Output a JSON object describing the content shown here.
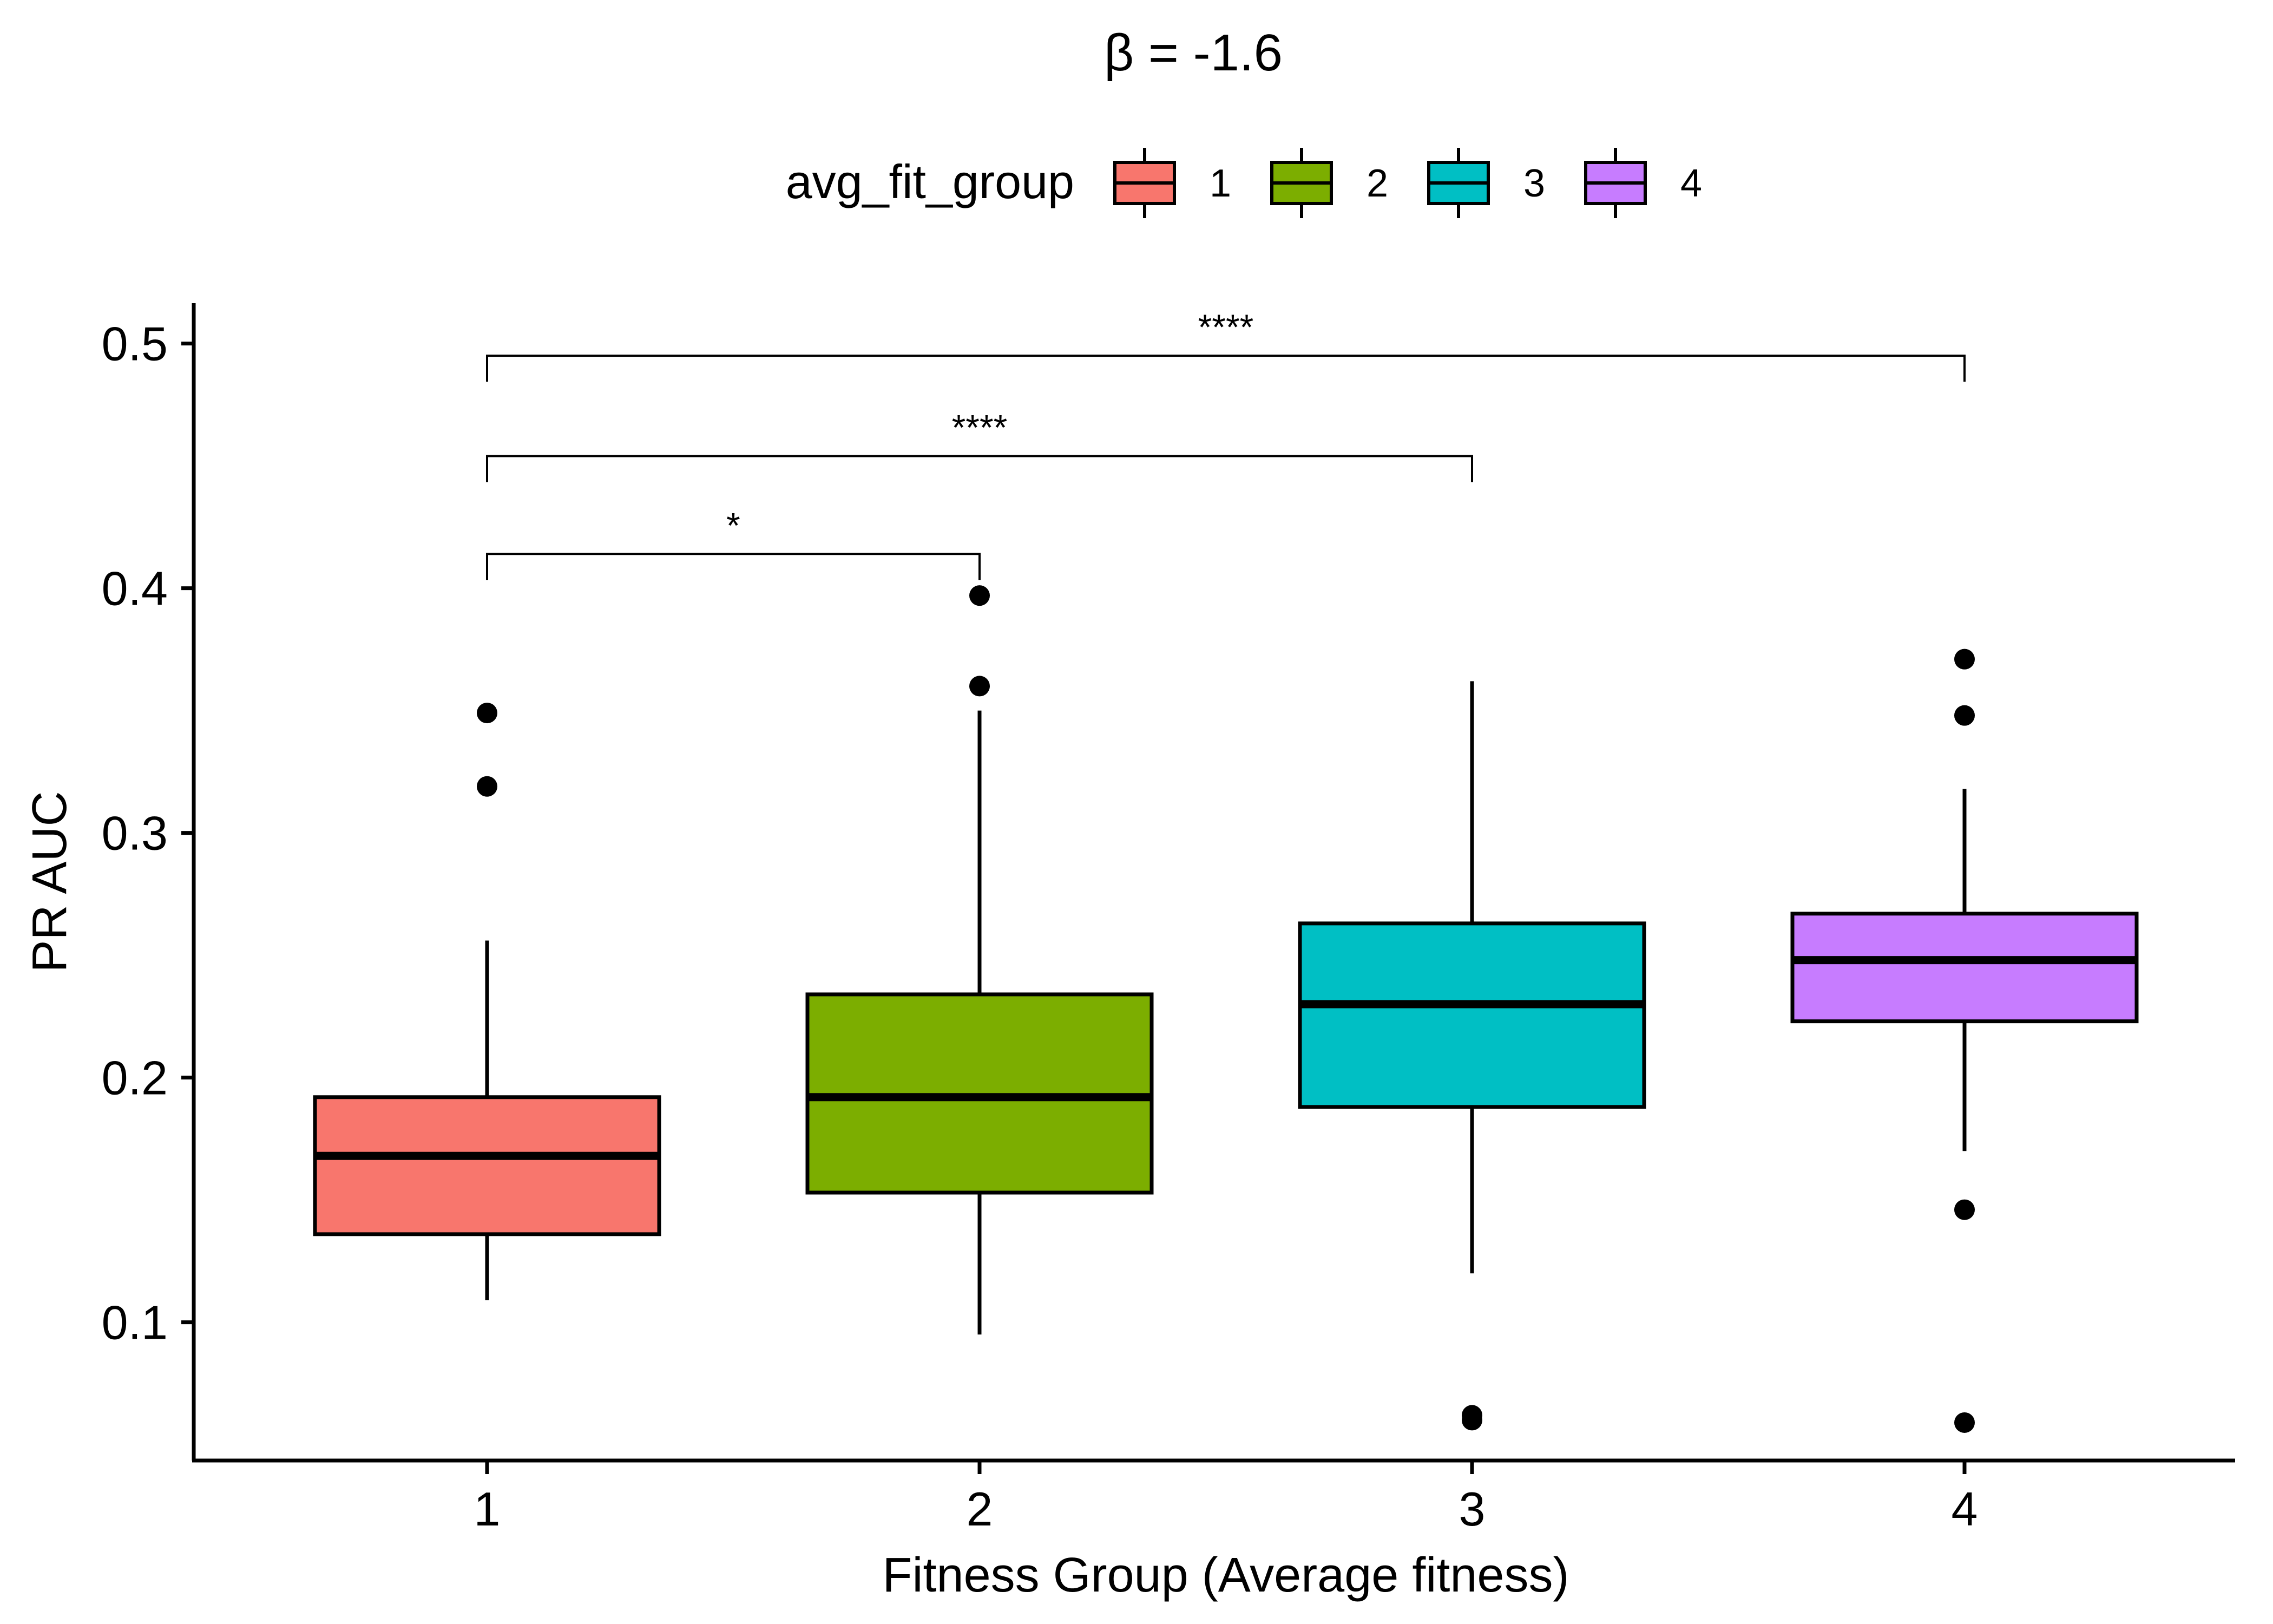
{
  "chart_data": {
    "type": "boxplot",
    "title": "β = -1.6",
    "xlabel": "Fitness Group (Average fitness)",
    "ylabel": "PR AUC",
    "ylim": [
      0.0435,
      0.5165
    ],
    "yticks": [
      "0.1",
      "0.2",
      "0.3",
      "0.4",
      "0.5"
    ],
    "categories": [
      "1",
      "2",
      "3",
      "4"
    ],
    "grid": false,
    "legend": {
      "title": "avg_fit_group",
      "position": "top",
      "entries": [
        "1",
        "2",
        "3",
        "4"
      ]
    },
    "series": [
      {
        "name": "1",
        "color": "#F8766D",
        "lower_whisker": 0.109,
        "q1": 0.136,
        "median": 0.168,
        "q3": 0.192,
        "upper_whisker": 0.256,
        "outliers": [
          0.319,
          0.349
        ]
      },
      {
        "name": "2",
        "color": "#7CAE00",
        "lower_whisker": 0.095,
        "q1": 0.153,
        "median": 0.192,
        "q3": 0.234,
        "upper_whisker": 0.35,
        "outliers": [
          0.36,
          0.397
        ]
      },
      {
        "name": "3",
        "color": "#00BFC4",
        "lower_whisker": 0.12,
        "q1": 0.188,
        "median": 0.23,
        "q3": 0.263,
        "upper_whisker": 0.362,
        "outliers": [
          0.06,
          0.062
        ]
      },
      {
        "name": "4",
        "color": "#C77CFF",
        "lower_whisker": 0.17,
        "q1": 0.223,
        "median": 0.248,
        "q3": 0.267,
        "upper_whisker": 0.318,
        "outliers": [
          0.059,
          0.146,
          0.348,
          0.371
        ]
      }
    ],
    "comparisons": [
      {
        "from": "1",
        "to": "2",
        "label": "*",
        "y": 0.414
      },
      {
        "from": "1",
        "to": "3",
        "label": "****",
        "y": 0.454
      },
      {
        "from": "1",
        "to": "4",
        "label": "****",
        "y": 0.495
      }
    ]
  }
}
